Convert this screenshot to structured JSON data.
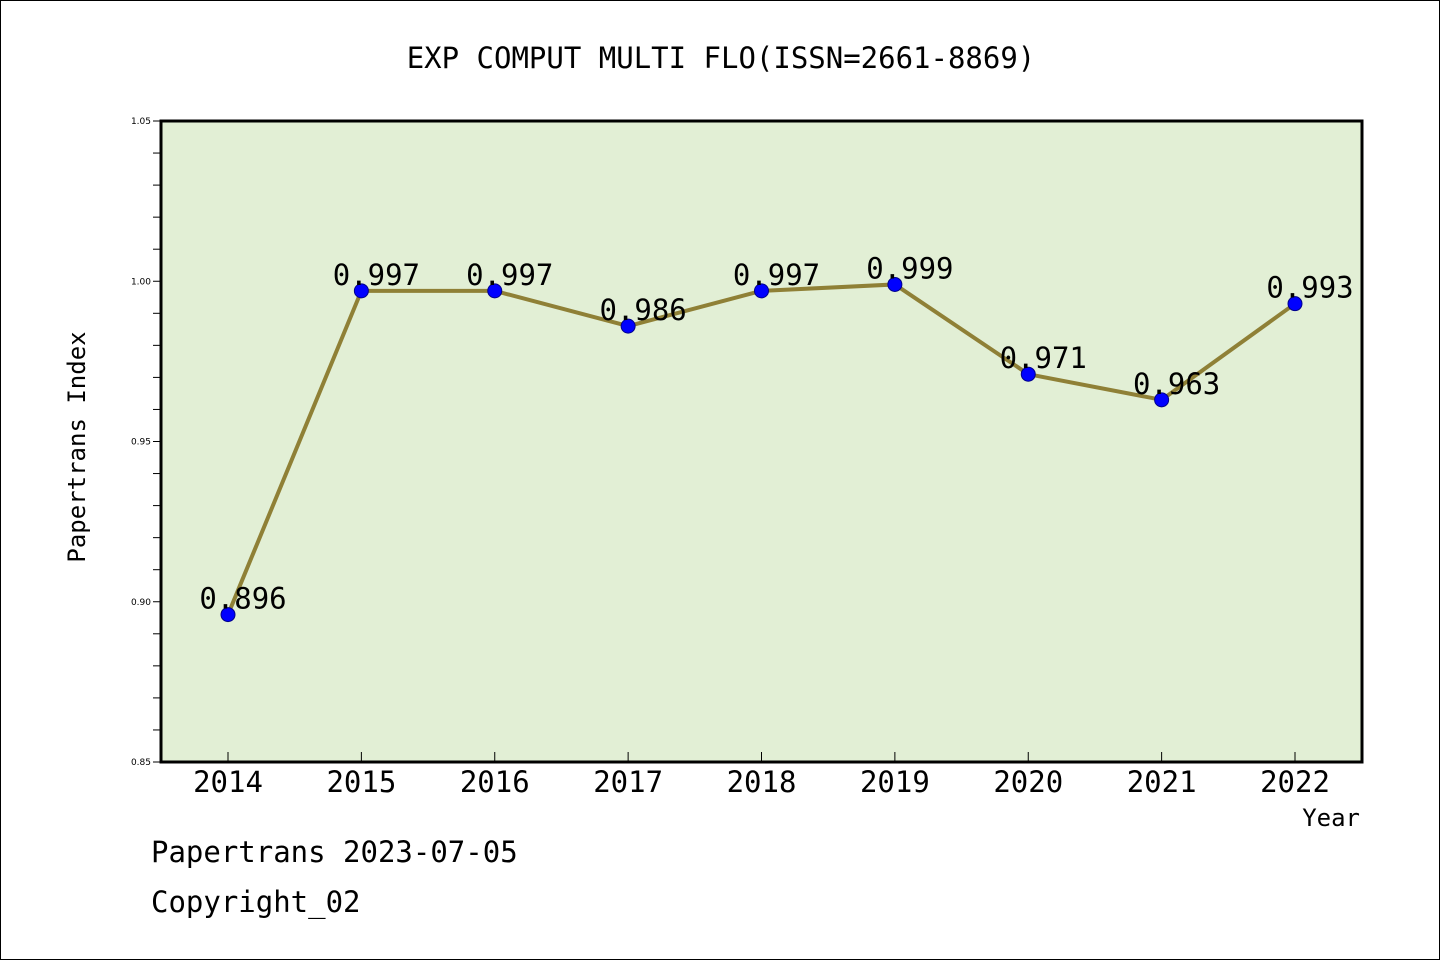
{
  "chart_data": {
    "type": "line",
    "title": "EXP COMPUT MULTI FLO(ISSN=2661-8869)",
    "xlabel": "Year",
    "ylabel": "Papertrans Index",
    "categories": [
      "2014",
      "2015",
      "2016",
      "2017",
      "2018",
      "2019",
      "2020",
      "2021",
      "2022"
    ],
    "series": [
      {
        "values": [
          0.896,
          0.997,
          0.997,
          0.986,
          0.997,
          0.999,
          0.971,
          0.963,
          0.993
        ],
        "labels": [
          "0.896",
          "0.997",
          "0.997",
          "0.986",
          "0.997",
          "0.999",
          "0.971",
          "0.963",
          "0.993"
        ]
      }
    ],
    "ylim": [
      0.85,
      1.05
    ],
    "yticks": [
      "0.85",
      "0.90",
      "0.95",
      "1.00",
      "1.05"
    ],
    "grid": false,
    "legend": "none",
    "colors": {
      "plot_background": "#e2efd5",
      "line": "#8f8036",
      "marker": "#0000ff"
    }
  },
  "footer": {
    "line1": "Papertrans 2023-07-05",
    "line2": "Copyright_02"
  }
}
